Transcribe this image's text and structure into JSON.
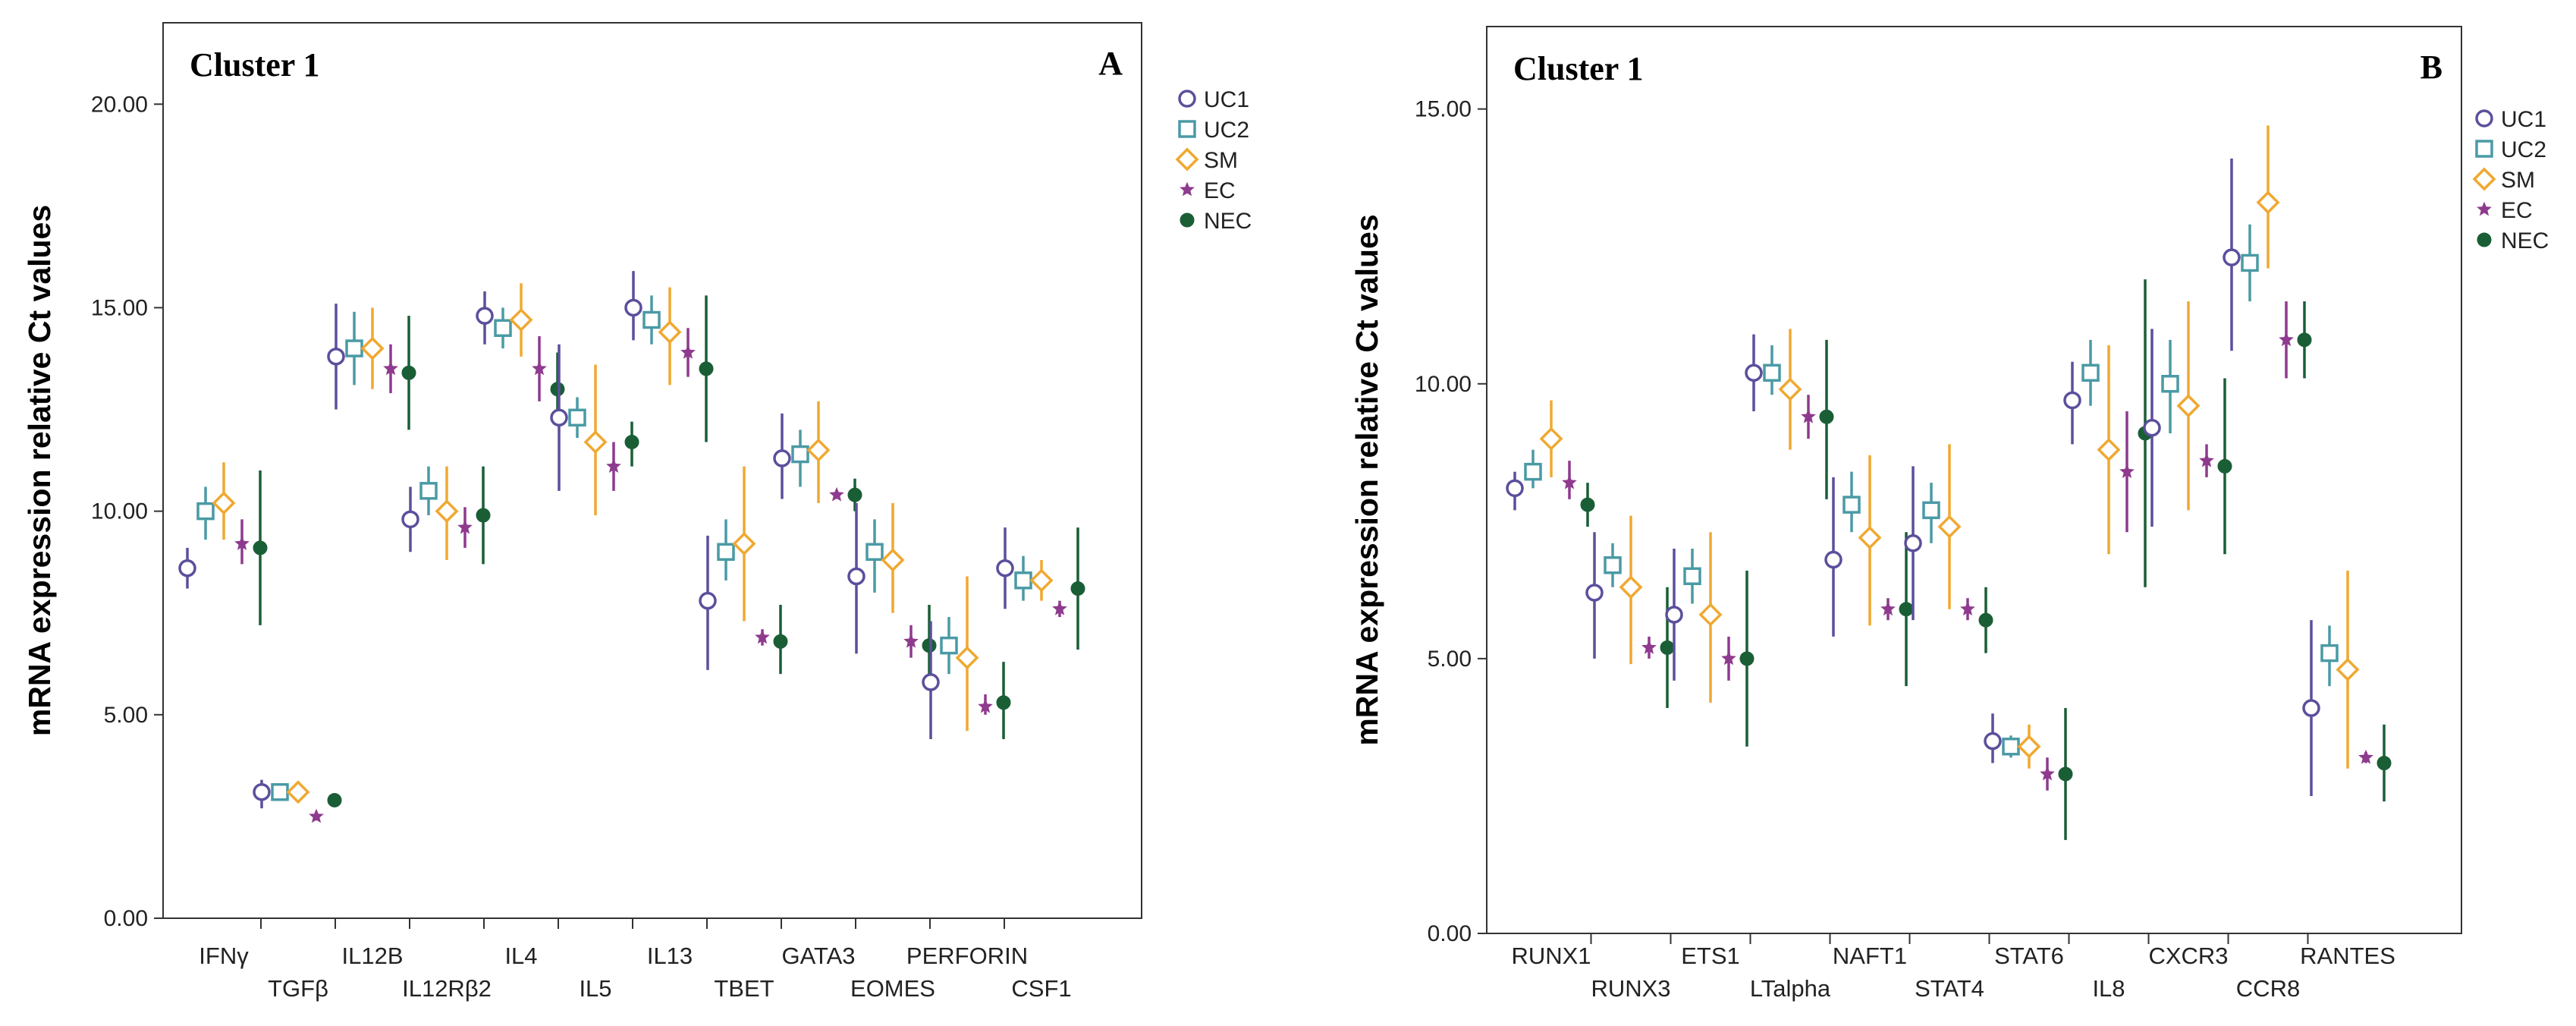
{
  "chart_data": [
    {
      "type": "scatter",
      "subtype": "error-bar",
      "title": "Cluster 1",
      "panel_letter": "A",
      "xlabel": "",
      "ylabel": "mRNA expression relative Ct values",
      "ylim": [
        0,
        22
      ],
      "yticks": [
        "0.00",
        "5.00",
        "10.00",
        "15.00",
        "20.00"
      ],
      "grid": false,
      "legend_position": "top-right",
      "categories": [
        "IFNγ",
        "TGFβ",
        "IL12B",
        "IL12Rβ2",
        "IL4",
        "IL5",
        "IL13",
        "TBET",
        "GATA3",
        "EOMES",
        "PERFORIN",
        "CSF1"
      ],
      "series": [
        {
          "name": "UC1",
          "color": "#5b4f9c",
          "marker": "circle",
          "values": [
            8.6,
            3.1,
            13.8,
            9.8,
            14.8,
            12.3,
            15.0,
            7.8,
            11.3,
            8.4,
            5.8,
            8.6
          ],
          "err_low": [
            8.1,
            2.7,
            12.5,
            9.0,
            14.1,
            10.5,
            14.2,
            6.1,
            10.3,
            6.5,
            4.4,
            7.6
          ],
          "err_high": [
            9.1,
            3.4,
            15.1,
            10.6,
            15.4,
            14.1,
            15.9,
            9.4,
            12.4,
            10.2,
            7.3,
            9.6
          ]
        },
        {
          "name": "UC2",
          "color": "#4a9aa5",
          "marker": "square",
          "values": [
            10.0,
            3.1,
            14.0,
            10.5,
            14.5,
            12.3,
            14.7,
            9.0,
            11.4,
            9.0,
            6.7,
            8.3
          ],
          "err_low": [
            9.3,
            2.9,
            13.1,
            9.9,
            14.0,
            11.8,
            14.1,
            8.3,
            10.6,
            8.0,
            6.0,
            7.8
          ],
          "err_high": [
            10.6,
            3.3,
            14.9,
            11.1,
            15.0,
            12.8,
            15.3,
            9.8,
            12.0,
            9.8,
            7.4,
            8.9
          ]
        },
        {
          "name": "SM",
          "color": "#f0a830",
          "marker": "diamond",
          "values": [
            10.2,
            3.1,
            14.0,
            10.0,
            14.7,
            11.7,
            14.4,
            9.2,
            11.5,
            8.8,
            6.4,
            8.3
          ],
          "err_low": [
            9.3,
            2.9,
            13.0,
            8.8,
            13.8,
            9.9,
            13.1,
            7.3,
            10.2,
            7.5,
            4.6,
            7.8
          ],
          "err_high": [
            11.2,
            3.3,
            15.0,
            11.1,
            15.6,
            13.6,
            15.5,
            11.1,
            12.7,
            10.2,
            8.4,
            8.8
          ]
        },
        {
          "name": "EC",
          "color": "#8e3a8e",
          "marker": "star",
          "values": [
            9.2,
            2.5,
            13.5,
            9.6,
            13.5,
            11.1,
            13.9,
            6.9,
            10.4,
            6.8,
            5.2,
            7.6
          ],
          "err_low": [
            8.7,
            2.4,
            12.9,
            9.1,
            12.7,
            10.5,
            13.3,
            6.7,
            10.3,
            6.4,
            5.0,
            7.4
          ],
          "err_high": [
            9.8,
            2.6,
            14.1,
            10.1,
            14.3,
            11.7,
            14.5,
            7.1,
            10.5,
            7.2,
            5.5,
            7.8
          ]
        },
        {
          "name": "NEC",
          "color": "#1a5e36",
          "marker": "dot",
          "values": [
            9.1,
            2.9,
            13.4,
            9.9,
            13.0,
            11.7,
            13.5,
            6.8,
            10.4,
            6.7,
            5.3,
            8.1
          ],
          "err_low": [
            7.2,
            2.85,
            12.0,
            8.7,
            12.1,
            11.1,
            11.7,
            6.0,
            10.0,
            5.7,
            4.4,
            6.6
          ],
          "err_high": [
            11.0,
            2.95,
            14.8,
            11.1,
            13.9,
            12.2,
            15.3,
            7.7,
            10.8,
            7.7,
            6.3,
            9.6
          ]
        }
      ]
    },
    {
      "type": "scatter",
      "subtype": "error-bar",
      "title": "Cluster 1",
      "panel_letter": "B",
      "xlabel": "",
      "ylabel": "mRNA expression relative Ct values",
      "ylim": [
        0,
        16.5
      ],
      "yticks": [
        "0.00",
        "5.00",
        "10.00",
        "15.00"
      ],
      "grid": false,
      "legend_position": "top-right",
      "categories": [
        "RUNX1",
        "RUNX3",
        "ETS1",
        "LTalpha",
        "NAFT1",
        "STAT4",
        "STAT6",
        "IL8",
        "CXCR3",
        "CCR8",
        "RANTES"
      ],
      "series": [
        {
          "name": "UC1",
          "color": "#5b4f9c",
          "marker": "circle",
          "values": [
            8.1,
            6.2,
            5.8,
            10.2,
            6.8,
            7.1,
            3.5,
            9.7,
            9.2,
            12.3,
            4.1
          ],
          "err_low": [
            7.7,
            5.0,
            4.6,
            9.5,
            5.4,
            5.7,
            3.1,
            8.9,
            7.4,
            10.6,
            2.5
          ],
          "err_high": [
            8.4,
            7.3,
            7.0,
            10.9,
            8.3,
            8.5,
            4.0,
            10.4,
            11.0,
            14.1,
            5.7
          ]
        },
        {
          "name": "UC2",
          "color": "#4a9aa5",
          "marker": "square",
          "values": [
            8.4,
            6.7,
            6.5,
            10.2,
            7.8,
            7.7,
            3.4,
            10.2,
            10.0,
            12.2,
            5.1
          ],
          "err_low": [
            8.1,
            6.3,
            6.0,
            9.8,
            7.3,
            7.1,
            3.2,
            9.6,
            9.1,
            11.5,
            4.5
          ],
          "err_high": [
            8.8,
            7.1,
            7.0,
            10.7,
            8.4,
            8.2,
            3.6,
            10.8,
            10.8,
            12.9,
            5.6
          ]
        },
        {
          "name": "SM",
          "color": "#f0a830",
          "marker": "diamond",
          "values": [
            9.0,
            6.3,
            5.8,
            9.9,
            7.2,
            7.4,
            3.4,
            8.8,
            9.6,
            13.3,
            4.8
          ],
          "err_low": [
            8.3,
            4.9,
            4.2,
            8.8,
            5.6,
            5.9,
            3.0,
            6.9,
            7.7,
            12.1,
            3.0
          ],
          "err_high": [
            9.7,
            7.6,
            7.3,
            11.0,
            8.7,
            8.9,
            3.8,
            10.7,
            11.5,
            14.7,
            6.6
          ]
        },
        {
          "name": "EC",
          "color": "#8e3a8e",
          "marker": "star",
          "values": [
            8.2,
            5.2,
            5.0,
            9.4,
            5.9,
            5.9,
            2.9,
            8.4,
            8.6,
            10.8,
            3.2
          ],
          "err_low": [
            7.9,
            5.0,
            4.6,
            9.0,
            5.7,
            5.7,
            2.6,
            7.3,
            8.3,
            10.1,
            3.1
          ],
          "err_high": [
            8.6,
            5.4,
            5.4,
            9.8,
            6.1,
            6.1,
            3.2,
            9.5,
            8.9,
            11.5,
            3.3
          ]
        },
        {
          "name": "NEC",
          "color": "#1a5e36",
          "marker": "dot",
          "values": [
            7.8,
            5.2,
            5.0,
            9.4,
            5.9,
            5.7,
            2.9,
            9.1,
            8.5,
            10.8,
            3.1
          ],
          "err_low": [
            7.4,
            4.1,
            3.4,
            7.9,
            4.5,
            5.1,
            1.7,
            6.3,
            6.9,
            10.1,
            2.4
          ],
          "err_high": [
            8.2,
            6.3,
            6.6,
            10.8,
            7.3,
            6.3,
            4.1,
            11.9,
            10.1,
            11.5,
            3.8
          ]
        }
      ]
    }
  ]
}
